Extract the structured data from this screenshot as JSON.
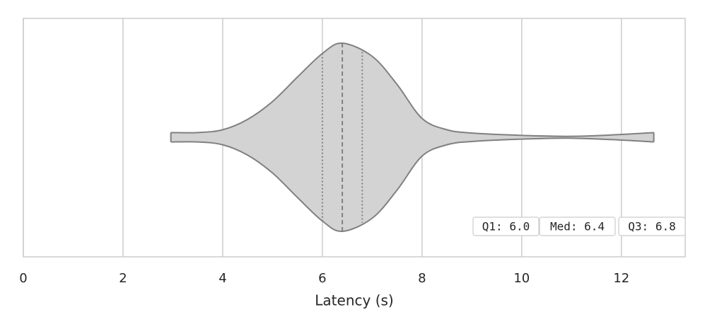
{
  "chart_data": {
    "type": "violin",
    "xlabel": "Latency (s)",
    "x": [
      2.96,
      3.5,
      4,
      4.5,
      5,
      5.5,
      6,
      6.4,
      7,
      7.5,
      8,
      8.5,
      9,
      10,
      11,
      12,
      12.65
    ],
    "density": [
      0.05,
      0.05,
      0.08,
      0.19,
      0.38,
      0.64,
      0.89,
      1.0,
      0.86,
      0.56,
      0.2,
      0.08,
      0.045,
      0.02,
      0.01,
      0.03,
      0.05
    ],
    "color": "#d3d3d3",
    "edge_color": "#808080",
    "q1": 6.0,
    "median": 6.4,
    "q3": 6.8,
    "annotations": [
      "Q1: 6.0",
      "Med: 6.4",
      "Q3: 6.8"
    ],
    "xlim": [
      0,
      13.28
    ],
    "xticks": [
      0,
      2,
      4,
      6,
      8,
      10,
      12
    ],
    "grid": true
  }
}
